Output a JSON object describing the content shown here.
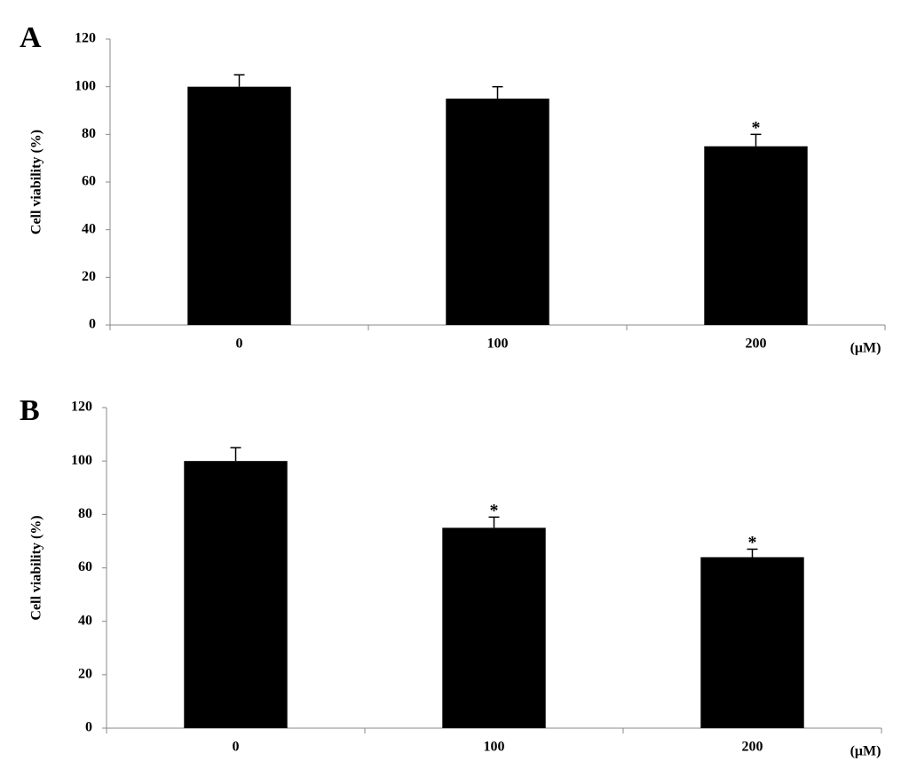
{
  "chart_data": [
    {
      "type": "bar",
      "panel": "A",
      "ylabel": "Cell viability (%)",
      "xlabel": "(μM)",
      "categories": [
        "0",
        "100",
        "200"
      ],
      "values": [
        100,
        95,
        75
      ],
      "errors": [
        5,
        5,
        5
      ],
      "significance": [
        null,
        null,
        "*"
      ],
      "color": "#000000",
      "ylim": [
        0,
        120
      ],
      "yticks": [
        0,
        20,
        40,
        60,
        80,
        100,
        120
      ]
    },
    {
      "type": "bar",
      "panel": "B",
      "ylabel": "Cell viability (%)",
      "xlabel": "(μM)",
      "categories": [
        "0",
        "100",
        "200"
      ],
      "values": [
        100,
        75,
        64
      ],
      "errors": [
        5,
        4,
        3
      ],
      "significance": [
        null,
        "*",
        "*"
      ],
      "color": "#000000",
      "ylim": [
        0,
        120
      ],
      "yticks": [
        0,
        20,
        40,
        60,
        80,
        100,
        120
      ]
    }
  ]
}
